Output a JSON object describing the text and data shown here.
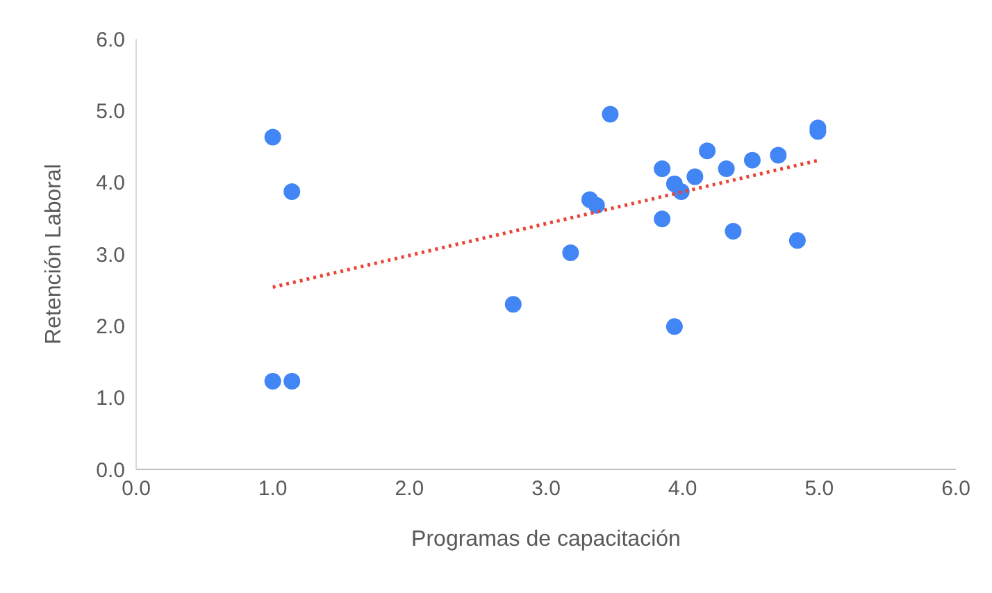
{
  "chart_data": {
    "type": "scatter",
    "xlabel": "Programas de capacitación",
    "ylabel": "Retención Laboral",
    "xlim": [
      0,
      6
    ],
    "ylim": [
      0,
      6
    ],
    "xticks": [
      {
        "value": 0,
        "label": "0.0"
      },
      {
        "value": 1,
        "label": "1.0"
      },
      {
        "value": 2,
        "label": "2.0"
      },
      {
        "value": 3,
        "label": "3.0"
      },
      {
        "value": 4,
        "label": "4.0"
      },
      {
        "value": 5,
        "label": "5.0"
      },
      {
        "value": 6,
        "label": "6.0"
      }
    ],
    "yticks": [
      {
        "value": 0,
        "label": "0.0"
      },
      {
        "value": 1,
        "label": "1.0"
      },
      {
        "value": 2,
        "label": "2.0"
      },
      {
        "value": 3,
        "label": "3.0"
      },
      {
        "value": 4,
        "label": "4.0"
      },
      {
        "value": 5,
        "label": "5.0"
      },
      {
        "value": 6,
        "label": "6.0"
      }
    ],
    "grid": false,
    "legend": false,
    "marker": "circle",
    "series": [
      {
        "color": "#4285f4",
        "x": [
          1.0,
          1.14,
          1.0,
          1.14,
          2.76,
          3.18,
          3.32,
          3.37,
          3.47,
          3.85,
          3.85,
          3.94,
          3.94,
          3.99,
          4.09,
          4.18,
          4.32,
          4.37,
          4.51,
          4.7,
          4.84,
          4.99,
          4.99
        ],
        "values": [
          4.63,
          3.87,
          1.23,
          1.23,
          2.3,
          3.02,
          3.76,
          3.68,
          4.95,
          4.19,
          3.49,
          1.99,
          3.98,
          3.87,
          4.08,
          4.44,
          4.19,
          3.32,
          4.31,
          4.38,
          3.19,
          4.76,
          4.71
        ]
      },
      {
        "type": "line",
        "color": "#ea4335",
        "line_style": "dotted",
        "marker": "none",
        "x": [
          1.0,
          5.0
        ],
        "values": [
          2.54,
          4.31
        ]
      }
    ]
  }
}
